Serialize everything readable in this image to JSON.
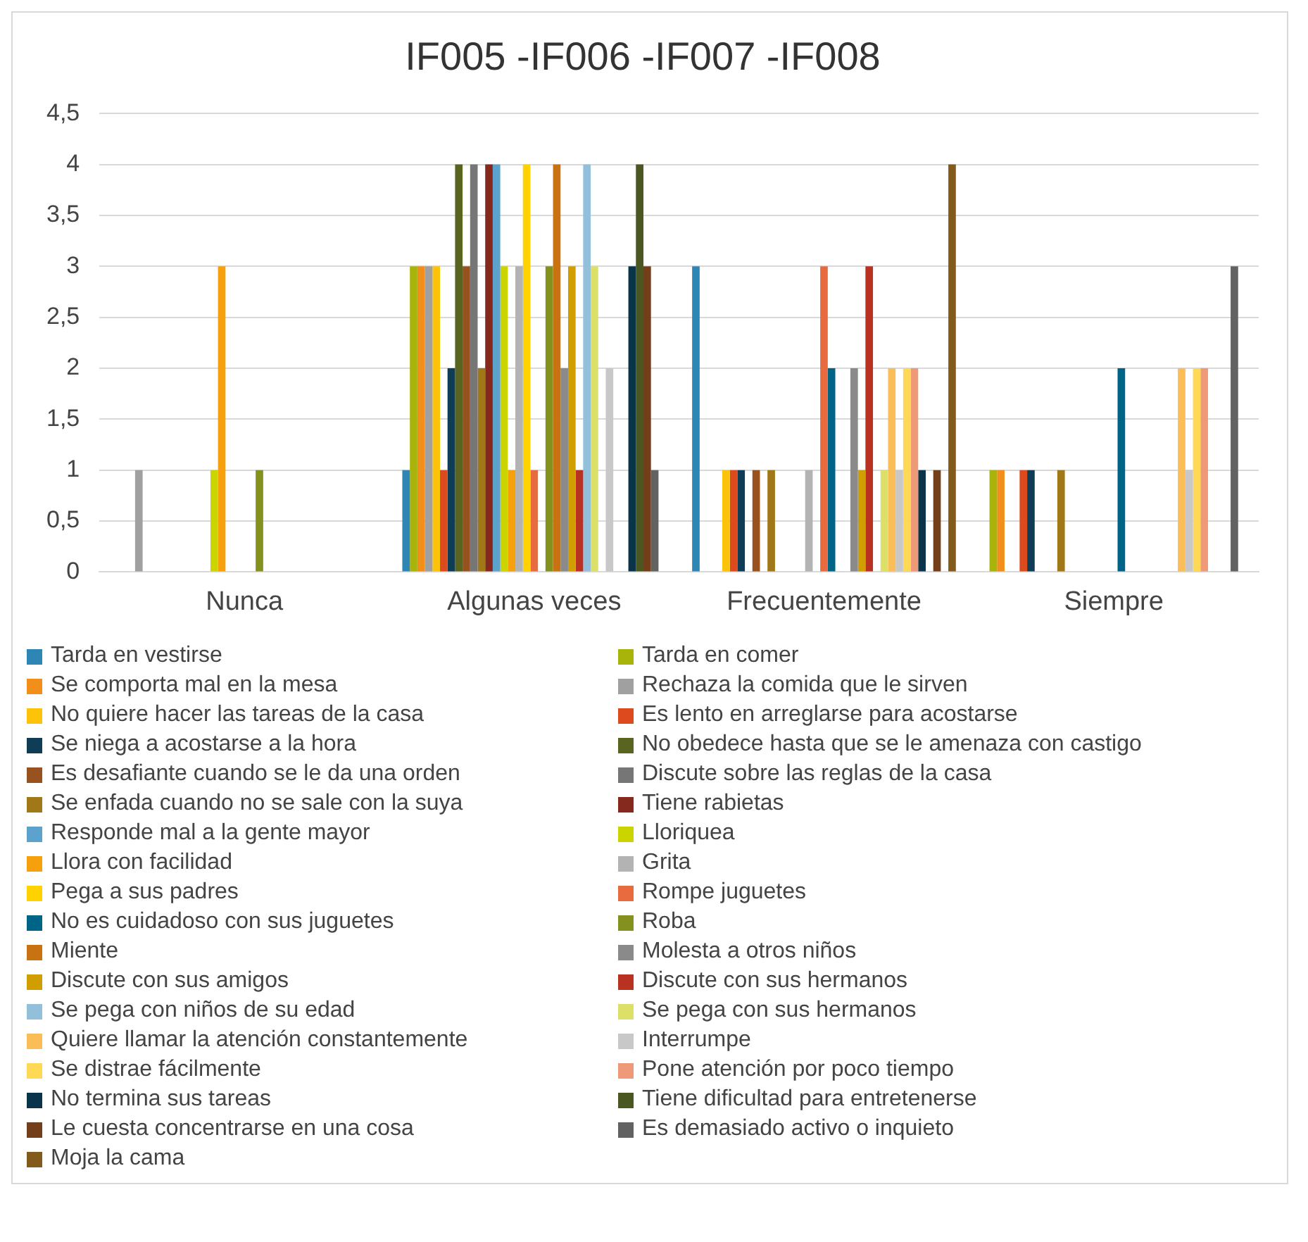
{
  "chart_data": {
    "type": "bar",
    "title": "IF005 -IF006 -IF007 -IF008",
    "categories": [
      "Nunca",
      "Algunas veces",
      "Frecuentemente",
      "Siempre"
    ],
    "ylim": [
      0,
      4.5
    ],
    "yticks": [
      0,
      {
        "value": 0.5,
        "label": "0,5"
      },
      1,
      {
        "value": 1.5,
        "label": "1,5"
      },
      2,
      {
        "value": 2.5,
        "label": "2,5"
      },
      3,
      {
        "value": 3.5,
        "label": "3,5"
      },
      4,
      {
        "value": 4.5,
        "label": "4,5"
      }
    ],
    "grid": "y",
    "legend": "bottom",
    "series": [
      {
        "name": "Tarda en vestirse",
        "color": "#2e86b5",
        "values": [
          null,
          1,
          3,
          null
        ]
      },
      {
        "name": "Tarda en comer",
        "color": "#a9b40b",
        "values": [
          null,
          3,
          null,
          1
        ]
      },
      {
        "name": "Se comporta mal en la mesa",
        "color": "#f28e1a",
        "values": [
          null,
          3,
          null,
          1
        ]
      },
      {
        "name": "Rechaza la comida que le sirven",
        "color": "#a0a0a0",
        "values": [
          1,
          3,
          null,
          null
        ]
      },
      {
        "name": "No quiere hacer las tareas de la casa",
        "color": "#fcc30a",
        "values": [
          null,
          3,
          1,
          null
        ]
      },
      {
        "name": "Es lento en arreglarse para acostarse",
        "color": "#dc4a1d",
        "values": [
          null,
          1,
          1,
          1
        ]
      },
      {
        "name": "Se niega a acostarse a la hora",
        "color": "#0f3d55",
        "values": [
          null,
          2,
          1,
          1
        ]
      },
      {
        "name": "No obedece hasta que se le amenaza con castigo",
        "color": "#5a6421",
        "values": [
          null,
          4,
          null,
          null
        ]
      },
      {
        "name": "Es desafiante cuando se le da una orden",
        "color": "#985220",
        "values": [
          null,
          3,
          1,
          null
        ]
      },
      {
        "name": "Discute sobre las reglas de la casa",
        "color": "#767676",
        "values": [
          null,
          4,
          null,
          null
        ]
      },
      {
        "name": "Se enfada cuando no se sale con la suya",
        "color": "#a07818",
        "values": [
          null,
          2,
          1,
          1
        ]
      },
      {
        "name": "Tiene rabietas",
        "color": "#85281e",
        "values": [
          null,
          4,
          null,
          null
        ]
      },
      {
        "name": "Responde mal a la gente mayor",
        "color": "#5ba3cc",
        "values": [
          null,
          4,
          null,
          null
        ]
      },
      {
        "name": "Lloriquea",
        "color": "#ccd400",
        "values": [
          1,
          3,
          null,
          null
        ]
      },
      {
        "name": "Llora con facilidad",
        "color": "#f5a00c",
        "values": [
          3,
          1,
          null,
          null
        ]
      },
      {
        "name": "Grita",
        "color": "#b3b3b3",
        "values": [
          null,
          3,
          1,
          null
        ]
      },
      {
        "name": "Pega a sus padres",
        "color": "#ffd200",
        "values": [
          null,
          4,
          null,
          null
        ]
      },
      {
        "name": "Rompe juguetes",
        "color": "#e76b3f",
        "values": [
          null,
          1,
          3,
          null
        ]
      },
      {
        "name": "No es cuidadoso con sus juguetes",
        "color": "#006487",
        "values": [
          null,
          null,
          2,
          2
        ]
      },
      {
        "name": "Roba",
        "color": "#84911f",
        "values": [
          1,
          3,
          null,
          null
        ]
      },
      {
        "name": "Miente",
        "color": "#c87212",
        "values": [
          null,
          4,
          null,
          null
        ]
      },
      {
        "name": "Molesta a otros niños",
        "color": "#8a8a8a",
        "values": [
          null,
          2,
          2,
          null
        ]
      },
      {
        "name": "Discute con sus amigos",
        "color": "#d19e00",
        "values": [
          null,
          3,
          1,
          null
        ]
      },
      {
        "name": "Discute con sus hermanos",
        "color": "#b93120",
        "values": [
          null,
          1,
          3,
          null
        ]
      },
      {
        "name": "Se pega con niños de su edad",
        "color": "#92c0db",
        "values": [
          null,
          4,
          null,
          null
        ]
      },
      {
        "name": "Se pega con sus hermanos",
        "color": "#dde068",
        "values": [
          null,
          3,
          1,
          null
        ]
      },
      {
        "name": "Quiere llamar la atención constantemente",
        "color": "#fbbd57",
        "values": [
          null,
          null,
          2,
          2
        ]
      },
      {
        "name": "Interrumpe",
        "color": "#c8c8c8",
        "values": [
          null,
          2,
          1,
          1
        ]
      },
      {
        "name": "Se distrae fácilmente",
        "color": "#ffd855",
        "values": [
          null,
          null,
          2,
          2
        ]
      },
      {
        "name": "Pone atención por poco tiempo",
        "color": "#ee9a78",
        "values": [
          null,
          null,
          2,
          2
        ]
      },
      {
        "name": "No termina sus tareas",
        "color": "#09344a",
        "values": [
          null,
          3,
          1,
          null
        ]
      },
      {
        "name": "Tiene dificultad para entretenerse",
        "color": "#4b5720",
        "values": [
          null,
          4,
          null,
          null
        ]
      },
      {
        "name": "Le cuesta concentrarse en una cosa",
        "color": "#733f1b",
        "values": [
          null,
          3,
          1,
          null
        ]
      },
      {
        "name": "Es demasiado activo o inquieto",
        "color": "#626262",
        "values": [
          null,
          1,
          null,
          3
        ]
      },
      {
        "name": "Moja la cama",
        "color": "#825a1c",
        "values": [
          null,
          null,
          4,
          null
        ]
      }
    ]
  }
}
